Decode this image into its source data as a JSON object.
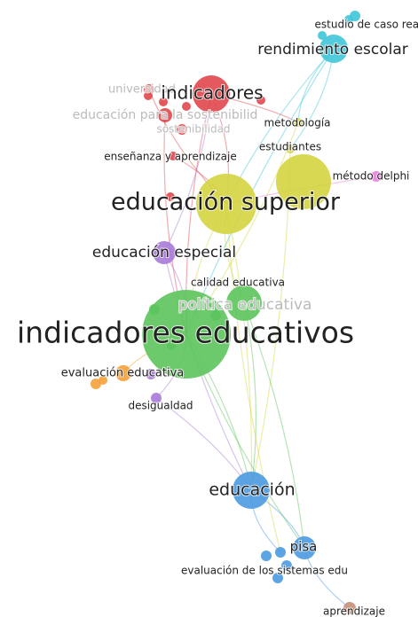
{
  "nodes": [
    {
      "label": "estudio de caso real"
    },
    {
      "label": "rendimiento escolar"
    },
    {
      "label": "universidad"
    },
    {
      "label": "indicadores"
    },
    {
      "label": "educación para la sostenibilid"
    },
    {
      "label": "sostenibilidad"
    },
    {
      "label": "metodología"
    },
    {
      "label": "enseñanza y aprendizaje"
    },
    {
      "label": "estudiantes"
    },
    {
      "label": "método delphi"
    },
    {
      "label": "educación superior"
    },
    {
      "label": "educación especial"
    },
    {
      "label": "calidad educativa"
    },
    {
      "label": "política educativa"
    },
    {
      "label": "indicadores educativos"
    },
    {
      "label": "evaluación educativa"
    },
    {
      "label": "desigualdad"
    },
    {
      "label": "educación"
    },
    {
      "label": "pisa"
    },
    {
      "label": "evaluación de los sistemas edu"
    },
    {
      "label": "aprendizaje"
    }
  ]
}
